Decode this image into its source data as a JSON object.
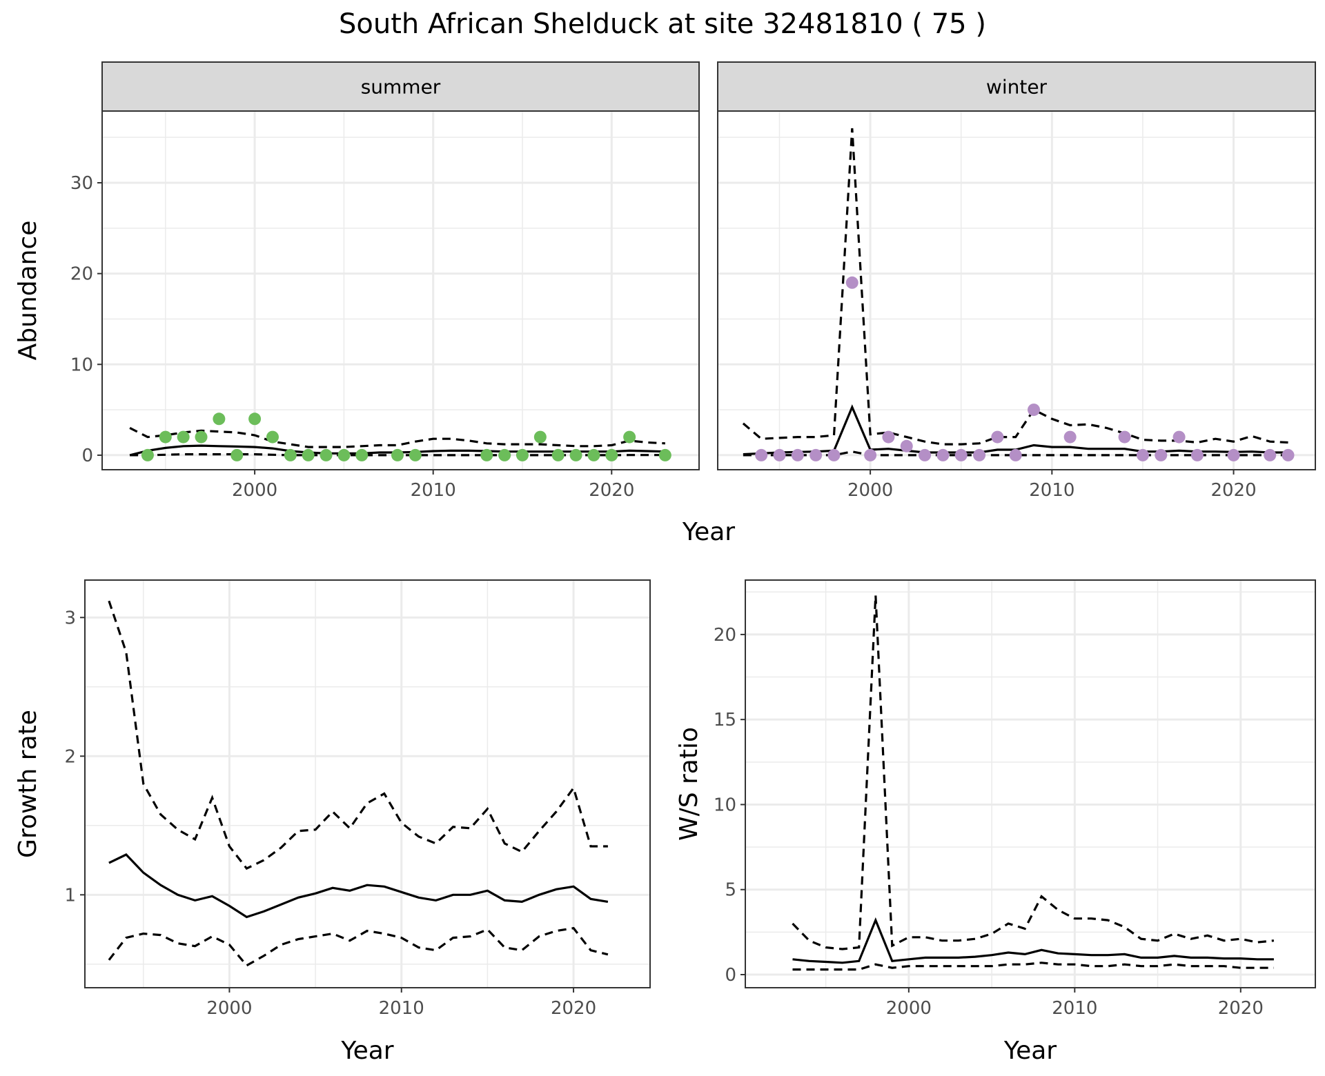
{
  "title": "South African Shelduck at site 32481810 ( 75 )",
  "colors": {
    "summer": "#6cbd5a",
    "winter": "#b48fc6",
    "line": "#000000",
    "grid": "#ebebeb",
    "strip": "#d9d9d9"
  },
  "chart_data": [
    {
      "type": "scatter",
      "facet": "summer",
      "xlabel": "Year",
      "ylabel": "Abundance",
      "xlim": [
        1991.45,
        2024.9
      ],
      "ylim": [
        -1.6,
        37.9
      ],
      "xticks": [
        2000,
        2010,
        2020
      ],
      "yticks": [
        0,
        10,
        20,
        30
      ],
      "points": {
        "x": [
          1994,
          1995,
          1996,
          1997,
          1998,
          1999,
          2000,
          2001,
          2002,
          2003,
          2004,
          2005,
          2006,
          2008,
          2009,
          2013,
          2014,
          2015,
          2016,
          2017,
          2018,
          2019,
          2020,
          2021,
          2023
        ],
        "y": [
          0,
          2,
          2,
          2,
          4,
          0,
          4,
          2,
          0,
          0,
          0,
          0,
          0,
          0,
          0,
          0,
          0,
          0,
          2,
          0,
          0,
          0,
          0,
          2,
          0
        ]
      },
      "line_x": [
        1993,
        1994,
        1995,
        1996,
        1997,
        1998,
        1999,
        2000,
        2001,
        2002,
        2003,
        2004,
        2005,
        2006,
        2007,
        2008,
        2009,
        2010,
        2011,
        2012,
        2013,
        2014,
        2015,
        2016,
        2017,
        2018,
        2019,
        2020,
        2021,
        2022,
        2023
      ],
      "fit": [
        0,
        0.5,
        0.8,
        1.0,
        1.05,
        1.0,
        0.95,
        0.9,
        0.75,
        0.45,
        0.3,
        0.2,
        0.2,
        0.2,
        0.3,
        0.3,
        0.35,
        0.45,
        0.5,
        0.5,
        0.45,
        0.4,
        0.4,
        0.4,
        0.4,
        0.4,
        0.4,
        0.4,
        0.5,
        0.45,
        0.4
      ],
      "upper": [
        3,
        2,
        2.2,
        2.5,
        2.7,
        2.6,
        2.5,
        2.2,
        1.5,
        1.2,
        0.9,
        0.9,
        0.9,
        1.0,
        1.1,
        1.1,
        1.5,
        1.8,
        1.8,
        1.6,
        1.3,
        1.2,
        1.2,
        1.2,
        1.1,
        1.0,
        1.0,
        1.1,
        1.6,
        1.4,
        1.3
      ],
      "lower": [
        0,
        0,
        0.05,
        0.1,
        0.1,
        0.1,
        0.1,
        0.1,
        0.05,
        0,
        0,
        0,
        0,
        0,
        0,
        0,
        0,
        0,
        0,
        0,
        0,
        0,
        0,
        0,
        0,
        0,
        0,
        0,
        0.02,
        0.02,
        0.02
      ]
    },
    {
      "type": "scatter",
      "facet": "winter",
      "xlabel": "Year",
      "ylabel": "Abundance",
      "xlim": [
        1991.6,
        2024.5
      ],
      "ylim": [
        -1.6,
        37.9
      ],
      "xticks": [
        2000,
        2010,
        2020
      ],
      "yticks": [
        0,
        10,
        20,
        30
      ],
      "points": {
        "x": [
          1994,
          1995,
          1996,
          1997,
          1998,
          1999,
          2000,
          2001,
          2002,
          2003,
          2004,
          2005,
          2006,
          2007,
          2008,
          2009,
          2011,
          2014,
          2015,
          2016,
          2017,
          2018,
          2020,
          2022,
          2023
        ],
        "y": [
          0,
          0,
          0,
          0,
          0,
          19,
          0,
          2,
          1,
          0,
          0,
          0,
          0,
          2,
          0,
          5,
          2,
          2,
          0,
          0,
          2,
          0,
          0,
          0,
          0
        ]
      },
      "line_x": [
        1993,
        1994,
        1995,
        1996,
        1997,
        1998,
        1999,
        2000,
        2001,
        2002,
        2003,
        2004,
        2005,
        2006,
        2007,
        2008,
        2009,
        2010,
        2011,
        2012,
        2013,
        2014,
        2015,
        2016,
        2017,
        2018,
        2019,
        2020,
        2021,
        2022,
        2023
      ],
      "fit": [
        0.1,
        0.2,
        0.3,
        0.35,
        0.4,
        0.5,
        5.3,
        0.6,
        0.7,
        0.5,
        0.3,
        0.3,
        0.3,
        0.3,
        0.6,
        0.6,
        1.1,
        0.9,
        0.9,
        0.7,
        0.7,
        0.7,
        0.4,
        0.4,
        0.5,
        0.4,
        0.4,
        0.35,
        0.4,
        0.3,
        0.3
      ],
      "upper": [
        3.5,
        1.8,
        1.9,
        2.0,
        2.0,
        2.2,
        36,
        2.3,
        2.5,
        2.0,
        1.5,
        1.2,
        1.2,
        1.3,
        2.0,
        2.0,
        5.0,
        4.0,
        3.3,
        3.4,
        3.0,
        2.4,
        1.7,
        1.6,
        1.6,
        1.4,
        1.8,
        1.5,
        2.1,
        1.5,
        1.4
      ],
      "lower": [
        0,
        0,
        0,
        0,
        0,
        0,
        0.4,
        0,
        0,
        0,
        0,
        0,
        0,
        0,
        0,
        0,
        0,
        0,
        0,
        0,
        0,
        0,
        0,
        0,
        0,
        0,
        0,
        0,
        0,
        0,
        0
      ]
    },
    {
      "type": "line",
      "xlabel": "Year",
      "ylabel": "Growth rate",
      "xlim": [
        1991.6,
        2024.45
      ],
      "ylim": [
        0.33,
        3.27
      ],
      "xticks": [
        2000,
        2010,
        2020
      ],
      "yticks": [
        1,
        2,
        3
      ],
      "line_x": [
        1993,
        1994,
        1995,
        1996,
        1997,
        1998,
        1999,
        2000,
        2001,
        2002,
        2003,
        2004,
        2005,
        2006,
        2007,
        2008,
        2009,
        2010,
        2011,
        2012,
        2013,
        2014,
        2015,
        2016,
        2017,
        2018,
        2019,
        2020,
        2021,
        2022
      ],
      "fit": [
        1.23,
        1.29,
        1.16,
        1.07,
        1.0,
        0.96,
        0.99,
        0.92,
        0.84,
        0.88,
        0.93,
        0.98,
        1.01,
        1.05,
        1.03,
        1.07,
        1.06,
        1.02,
        0.98,
        0.96,
        1.0,
        1.0,
        1.03,
        0.96,
        0.95,
        1.0,
        1.04,
        1.06,
        0.97,
        0.95
      ],
      "upper": [
        3.12,
        2.75,
        1.8,
        1.58,
        1.47,
        1.4,
        1.7,
        1.35,
        1.19,
        1.25,
        1.34,
        1.46,
        1.47,
        1.6,
        1.48,
        1.66,
        1.73,
        1.52,
        1.42,
        1.37,
        1.49,
        1.48,
        1.62,
        1.37,
        1.31,
        1.46,
        1.6,
        1.77,
        1.35,
        1.35
      ],
      "lower": [
        0.53,
        0.69,
        0.72,
        0.71,
        0.65,
        0.63,
        0.7,
        0.64,
        0.49,
        0.56,
        0.64,
        0.68,
        0.7,
        0.72,
        0.67,
        0.74,
        0.72,
        0.69,
        0.62,
        0.6,
        0.69,
        0.7,
        0.75,
        0.62,
        0.6,
        0.7,
        0.74,
        0.76,
        0.6,
        0.57
      ]
    },
    {
      "type": "line",
      "xlabel": "Year",
      "ylabel": "W/S ratio",
      "xlim": [
        1990.15,
        2024.5
      ],
      "ylim": [
        -0.77,
        23.2
      ],
      "xticks": [
        2000,
        2010,
        2020
      ],
      "yticks": [
        0,
        5,
        10,
        15,
        20
      ],
      "line_x": [
        1993,
        1994,
        1995,
        1996,
        1997,
        1998,
        1999,
        2000,
        2001,
        2002,
        2003,
        2004,
        2005,
        2006,
        2007,
        2008,
        2009,
        2010,
        2011,
        2012,
        2013,
        2014,
        2015,
        2016,
        2017,
        2018,
        2019,
        2020,
        2021,
        2022
      ],
      "fit": [
        0.9,
        0.8,
        0.75,
        0.7,
        0.8,
        3.2,
        0.8,
        0.9,
        1.0,
        1.0,
        1.0,
        1.05,
        1.15,
        1.3,
        1.2,
        1.45,
        1.25,
        1.2,
        1.15,
        1.15,
        1.2,
        1.0,
        1.0,
        1.1,
        1.0,
        1.0,
        0.95,
        0.95,
        0.9,
        0.9
      ],
      "upper": [
        3,
        2,
        1.6,
        1.5,
        1.6,
        22.3,
        1.7,
        2.2,
        2.2,
        2,
        2,
        2.1,
        2.4,
        3,
        2.7,
        4.6,
        3.8,
        3.3,
        3.3,
        3.2,
        2.8,
        2.1,
        2.0,
        2.4,
        2.1,
        2.3,
        2.0,
        2.1,
        1.9,
        2.0
      ],
      "lower": [
        0.3,
        0.3,
        0.3,
        0.3,
        0.3,
        0.6,
        0.4,
        0.5,
        0.5,
        0.5,
        0.5,
        0.5,
        0.5,
        0.6,
        0.6,
        0.7,
        0.6,
        0.6,
        0.5,
        0.5,
        0.6,
        0.5,
        0.5,
        0.6,
        0.5,
        0.5,
        0.5,
        0.4,
        0.4,
        0.4
      ]
    }
  ]
}
